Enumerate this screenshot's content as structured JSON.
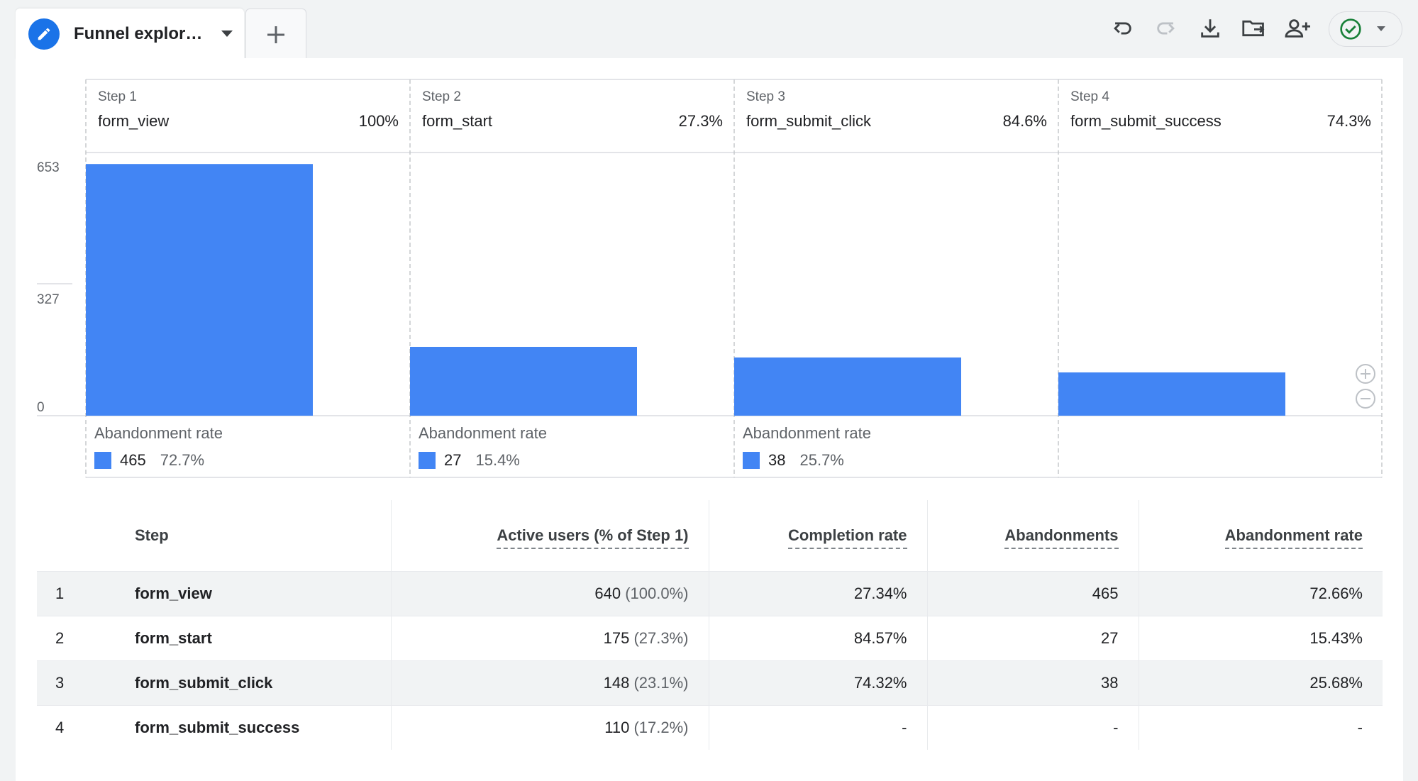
{
  "tab": {
    "title": "Funnel explor…",
    "icon": "pencil-icon"
  },
  "toolbar": {
    "icons": [
      "undo-icon",
      "redo-icon",
      "download-icon",
      "share-folder-icon",
      "add-user-icon",
      "check-circle-icon"
    ],
    "status_color": "#188038"
  },
  "colors": {
    "accent": "#1a73e8",
    "bar": "#4285f4"
  },
  "funnel": {
    "steps": [
      {
        "step_label": "Step 1",
        "name": "form_view",
        "pct": "100%"
      },
      {
        "step_label": "Step 2",
        "name": "form_start",
        "pct": "27.3%"
      },
      {
        "step_label": "Step 3",
        "name": "form_submit_click",
        "pct": "84.6%"
      },
      {
        "step_label": "Step 4",
        "name": "form_submit_success",
        "pct": "74.3%"
      }
    ],
    "abandonment": [
      {
        "label": "Abandonment rate",
        "count": "465",
        "pct": "72.7%"
      },
      {
        "label": "Abandonment rate",
        "count": "27",
        "pct": "15.4%"
      },
      {
        "label": "Abandonment rate",
        "count": "38",
        "pct": "25.7%"
      }
    ]
  },
  "chart_data": {
    "type": "bar",
    "categories": [
      "form_view",
      "form_start",
      "form_submit_click",
      "form_submit_success"
    ],
    "values": [
      640,
      175,
      148,
      110
    ],
    "yticks": [
      "653",
      "327",
      "0"
    ],
    "ylim": [
      0,
      653
    ],
    "grid": true
  },
  "table": {
    "headers": {
      "step": "Step",
      "users": "Active users (% of Step 1)",
      "completion": "Completion rate",
      "abandonments": "Abandonments",
      "abandon_rate": "Abandonment rate"
    },
    "rows": [
      {
        "num": "1",
        "step": "form_view",
        "users": "640",
        "users_pct": "(100.0%)",
        "completion": "27.34%",
        "abandonments": "465",
        "abandon_rate": "72.66%"
      },
      {
        "num": "2",
        "step": "form_start",
        "users": "175",
        "users_pct": "(27.3%)",
        "completion": "84.57%",
        "abandonments": "27",
        "abandon_rate": "15.43%"
      },
      {
        "num": "3",
        "step": "form_submit_click",
        "users": "148",
        "users_pct": "(23.1%)",
        "completion": "74.32%",
        "abandonments": "38",
        "abandon_rate": "25.68%"
      },
      {
        "num": "4",
        "step": "form_submit_success",
        "users": "110",
        "users_pct": "(17.2%)",
        "completion": "-",
        "abandonments": "-",
        "abandon_rate": "-"
      }
    ]
  }
}
